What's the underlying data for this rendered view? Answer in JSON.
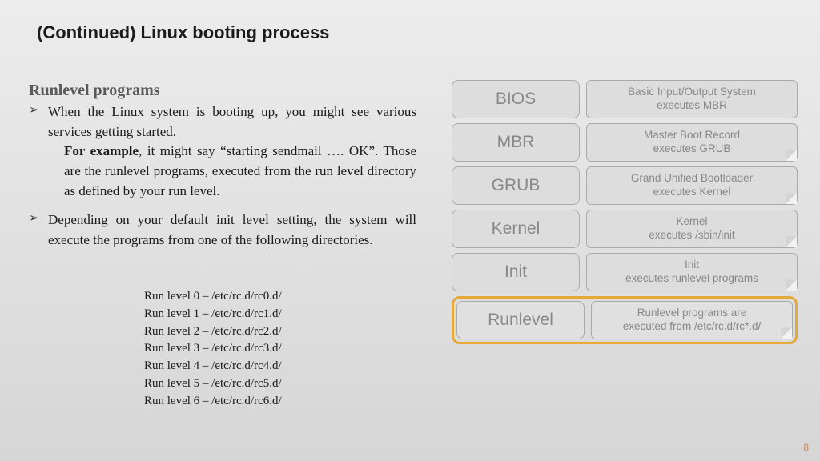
{
  "title": "(Continued) Linux booting process",
  "subtitle": "Runlevel programs",
  "bullets": [
    {
      "main": "When the Linux system is booting up, you might see various services getting started.",
      "extra_strong": "For example",
      "extra": ", it might say “starting sendmail …. OK”. Those are the runlevel programs, executed from the run level directory as defined by your run level."
    },
    {
      "main": "Depending on your default init level setting, the system will execute the programs from one of the following directories."
    }
  ],
  "runlevels": [
    "Run level 0 – /etc/rc.d/rc0.d/",
    "Run level 1 – /etc/rc.d/rc1.d/",
    "Run level 2 – /etc/rc.d/rc2.d/",
    "Run level 3 – /etc/rc.d/rc3.d/",
    "Run level 4 – /etc/rc.d/rc4.d/",
    "Run level 5 – /etc/rc.d/rc5.d/",
    "Run level 6 – /etc/rc.d/rc6.d/"
  ],
  "diagram": [
    {
      "left": "BIOS",
      "r1": "Basic Input/Output System",
      "r2": "executes MBR",
      "fold": false,
      "hl": false
    },
    {
      "left": "MBR",
      "r1": "Master Boot Record",
      "r2": "executes GRUB",
      "fold": true,
      "hl": false
    },
    {
      "left": "GRUB",
      "r1": "Grand Unified Bootloader",
      "r2": "executes Kernel",
      "fold": true,
      "hl": false
    },
    {
      "left": "Kernel",
      "r1": "Kernel",
      "r2": "executes /sbin/init",
      "fold": true,
      "hl": false
    },
    {
      "left": "Init",
      "r1": "Init",
      "r2": "executes runlevel programs",
      "fold": true,
      "hl": false
    },
    {
      "left": "Runlevel",
      "r1": "Runlevel programs are",
      "r2": "executed from /etc/rc.d/rc*.d/",
      "fold": true,
      "hl": true
    }
  ],
  "highlight_color": "#e4a938",
  "page_number": "8"
}
